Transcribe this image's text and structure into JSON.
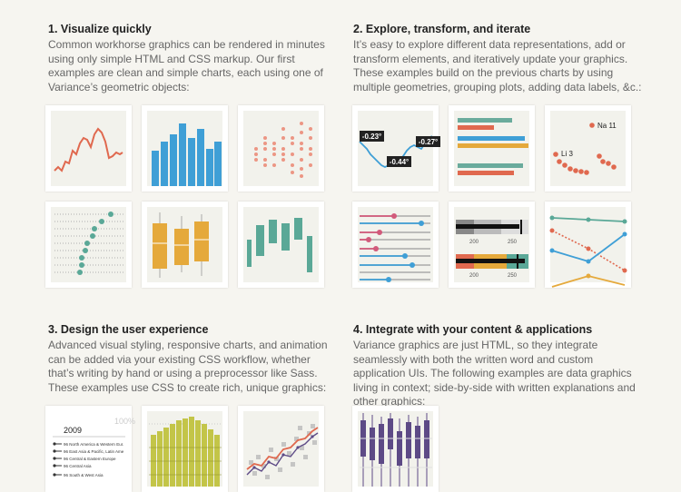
{
  "sections": [
    {
      "title": "1. Visualize quickly",
      "body": "Common workhorse graphics can be rendered in minutes using only simple HTML and CSS markup. Our first examples are clean and simple charts, each using one of Variance’s geometric objects:"
    },
    {
      "title": "2. Explore, transform, and iterate",
      "body": "It’s easy to explore different data representations, add or transform elements, and iteratively update your graphics. These examples build on the previous charts by using multiple geometries, grouping plots, adding data labels, &c.:"
    },
    {
      "title": "3. Design the user experience",
      "body": "Advanced visual styling, responsive charts, and animation can be added via your existing CSS workflow, whether that’s writing by hand or using a preprocessor like Sass. These examples use CSS to create rich, unique graphics:"
    },
    {
      "title": "4. Integrate with your content & applications",
      "body": "Variance graphics are just HTML, so they integrate seamlessly with both the written word and custom application UIs. The following examples are data graphics living in context; side-by-side with written explanations and other graphics:"
    }
  ],
  "tiles": {
    "explore_line_labels": [
      "-0.23°",
      "-0.44°",
      "-0.27°"
    ],
    "explore_scatter_labels": [
      "Na 11",
      "Li 3"
    ],
    "explore_bullet_ticks": [
      "200",
      "250"
    ],
    "design_table_year": "2009",
    "design_table_pct": "100%",
    "design_table_rows": [
      "96 North America & Western Eur.",
      "96 East Asia & Pacific, Latin Ame",
      "96 Central & Eastern Europe",
      "96 Central Asia",
      "96 South & West Asia"
    ]
  },
  "colors": {
    "red": "#e0694f",
    "blue": "#3f9fd6",
    "salmon": "#ec9684",
    "teal": "#5aa897",
    "gold": "#e5a93b",
    "pink": "#d25a7b",
    "olive": "#c3c548",
    "purple": "#5d4a86"
  }
}
